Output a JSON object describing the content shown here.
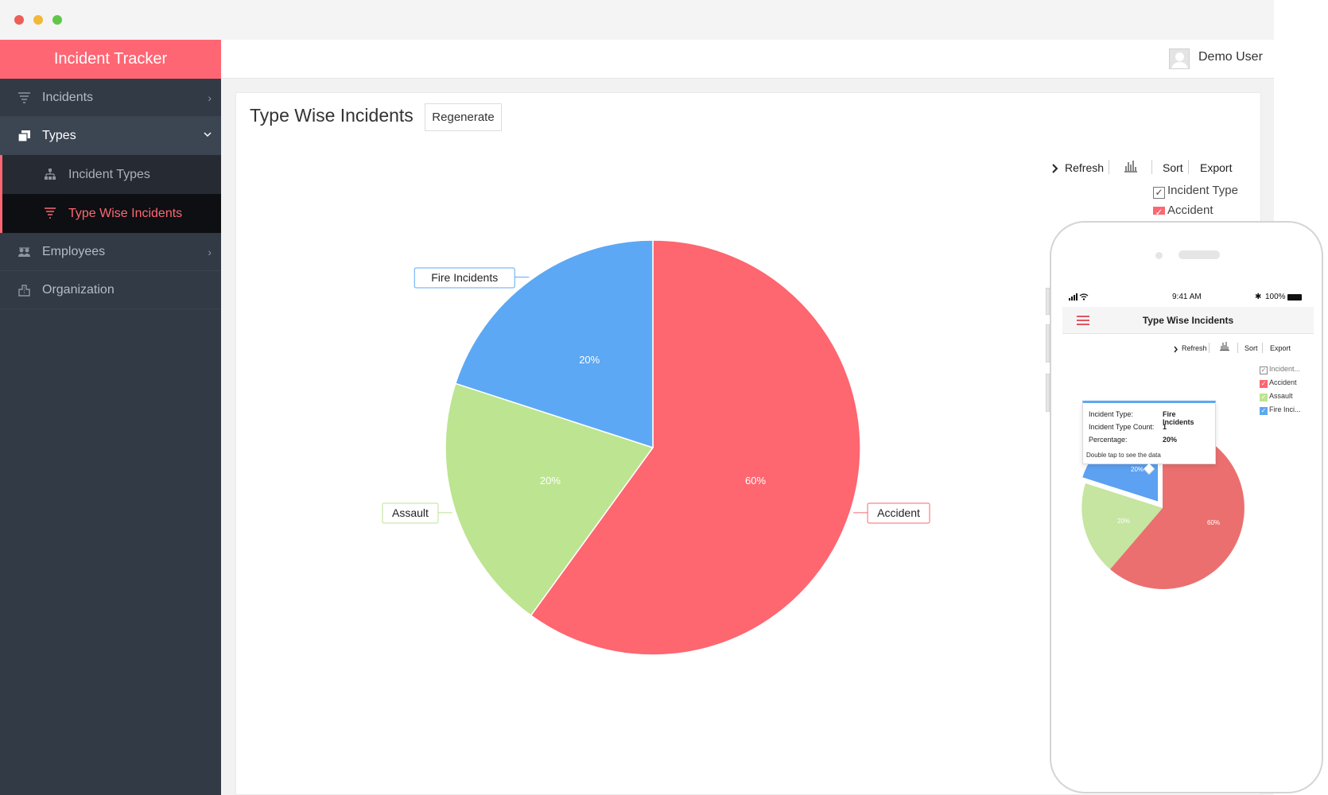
{
  "app": {
    "title": "Incident Tracker"
  },
  "sidebar": {
    "items": [
      {
        "label": "Incidents",
        "icon": "funnel-icon"
      },
      {
        "label": "Types",
        "icon": "stack-icon"
      },
      {
        "label": "Incident Types",
        "icon": "hierarchy-icon"
      },
      {
        "label": "Type Wise Incidents",
        "icon": "funnel-icon"
      },
      {
        "label": "Employees",
        "icon": "people-icon"
      },
      {
        "label": "Organization",
        "icon": "building-icon"
      }
    ]
  },
  "header": {
    "user_name": "Demo User"
  },
  "page": {
    "title": "Type Wise Incidents",
    "regenerate_label": "Regenerate"
  },
  "toolbar": {
    "refresh_label": "Refresh",
    "sort_label": "Sort",
    "export_label": "Export"
  },
  "legend": {
    "header": "Incident Type",
    "items": [
      "Accident"
    ]
  },
  "chart_data": {
    "type": "pie",
    "categories": [
      "Accident",
      "Assault",
      "Fire Incidents"
    ],
    "values": [
      60,
      20,
      20
    ],
    "labels": [
      "60%",
      "20%",
      "20%"
    ],
    "colors": [
      "#fe6670",
      "#bde491",
      "#5ca8f4"
    ]
  },
  "phone": {
    "time": "9:41 AM",
    "battery": "100%",
    "title": "Type Wise Incidents",
    "toolbar": {
      "refresh_label": "Refresh",
      "sort_label": "Sort",
      "export_label": "Export"
    },
    "legend": [
      "Incident...",
      "Accident",
      "Assault",
      "Fire Inci..."
    ],
    "tooltip": {
      "type_label": "Incident Type:",
      "type_value": "Fire Incidents",
      "count_label": "Incident Type Count:",
      "count_value": "1",
      "pct_label": "Percentage:",
      "pct_value": "20%",
      "note": "Double tap to see the data"
    },
    "slice_labels": [
      "60%",
      "20%",
      "20%"
    ]
  }
}
